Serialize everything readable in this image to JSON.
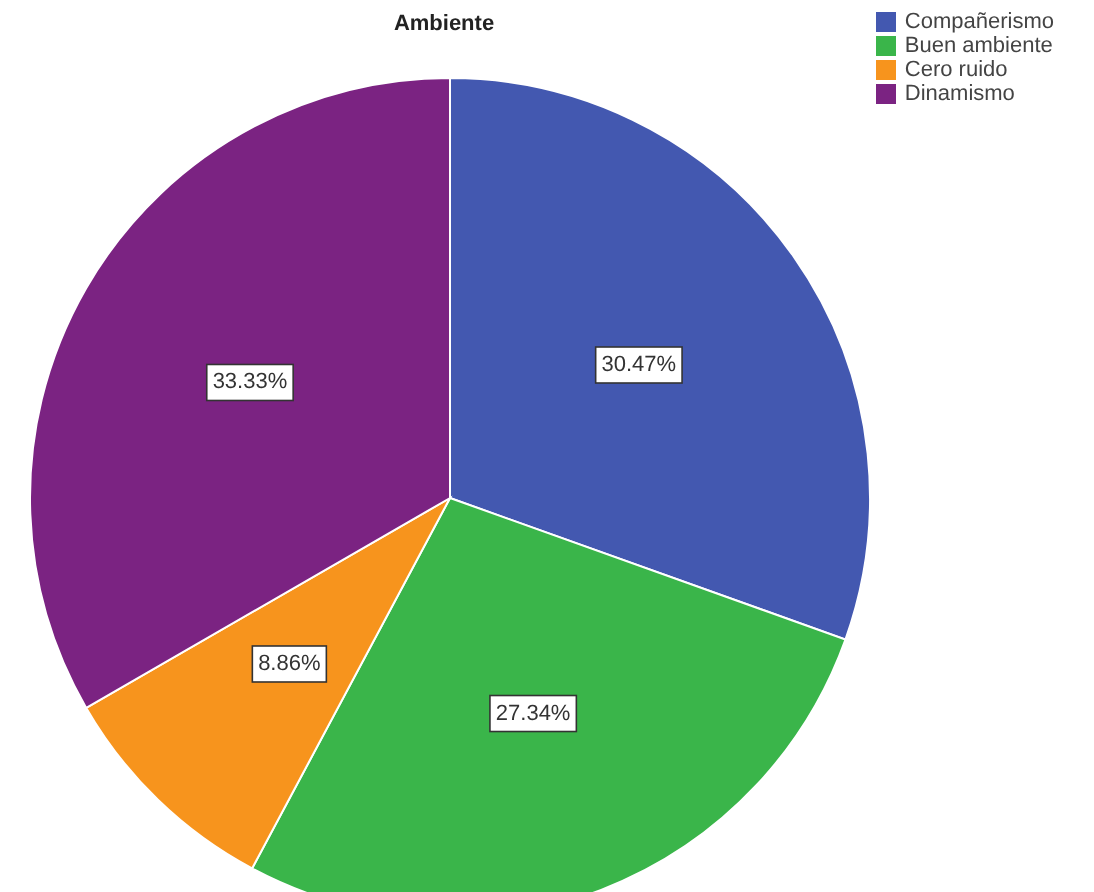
{
  "chart_data": {
    "type": "pie",
    "title": "Ambiente",
    "categories": [
      "Compañerismo",
      "Buen ambiente",
      "Cero ruido",
      "Dinamismo"
    ],
    "values": [
      30.47,
      27.34,
      8.86,
      33.33
    ],
    "value_labels": [
      "30.47%",
      "27.34%",
      "8.86%",
      "33.33%"
    ],
    "colors": [
      "#4358b0",
      "#3ab54a",
      "#f7941d",
      "#7b2382"
    ],
    "legend": "top right"
  }
}
